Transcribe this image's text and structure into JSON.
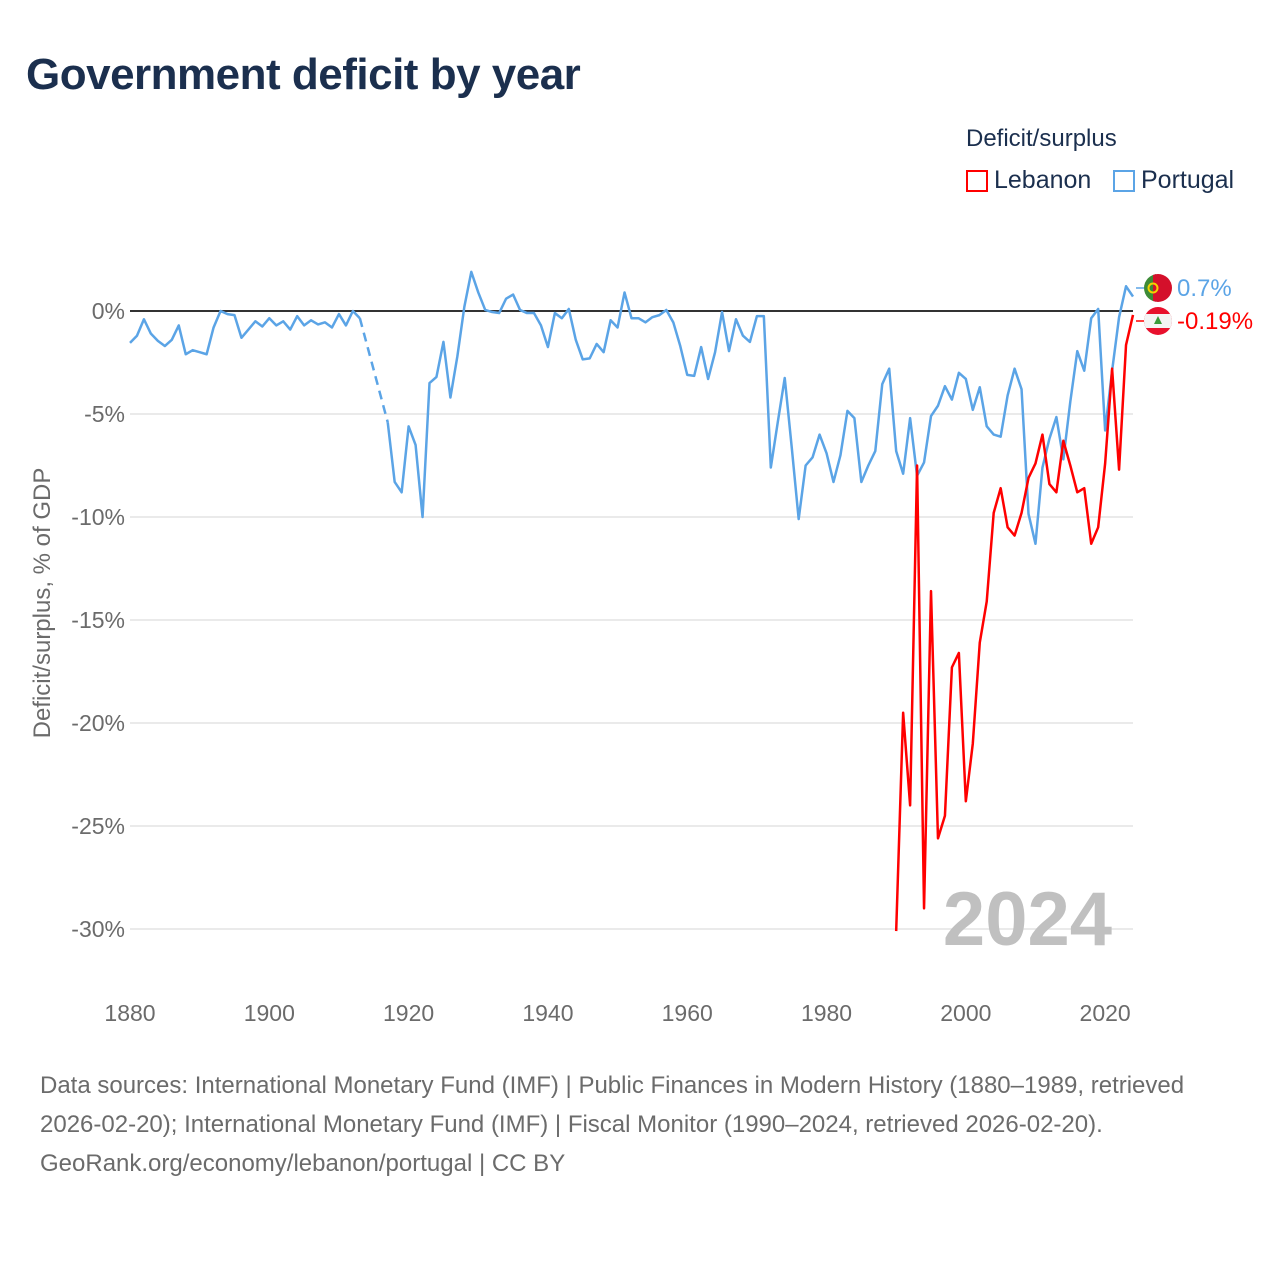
{
  "title": "Government deficit by year",
  "legend": {
    "title": "Deficit/surplus",
    "items": [
      {
        "label": "Lebanon",
        "color": "#ff0000"
      },
      {
        "label": "Portugal",
        "color": "#5ba4e6"
      }
    ]
  },
  "chart_data": {
    "type": "line",
    "title": "Government deficit by year",
    "xlabel": "",
    "ylabel": "Deficit/surplus, % of GDP",
    "xlim": [
      1880,
      2024
    ],
    "ylim": [
      -30,
      2
    ],
    "x_ticks": [
      1880,
      1900,
      1920,
      1940,
      1960,
      1980,
      2000,
      2020
    ],
    "x_tick_labels": [
      "1880",
      "1900",
      "1920",
      "1940",
      "1960",
      "1980",
      "2000",
      "2020"
    ],
    "y_ticks": [
      0,
      -5,
      -10,
      -15,
      -20,
      -25,
      -30
    ],
    "y_tick_labels": [
      "0%",
      "-5%",
      "-10%",
      "-15%",
      "-20%",
      "-25%",
      "-30%"
    ],
    "grid": true,
    "legend_position": "top-right",
    "current_year": "2024",
    "series": [
      {
        "name": "Portugal",
        "color": "#5ba4e6",
        "start_year": 1880,
        "end_label": "0.7%",
        "flag": "portugal-flag",
        "values": [
          -1.55,
          -1.2,
          -0.4,
          -1.1,
          -1.45,
          -1.7,
          -1.4,
          -0.7,
          -2.1,
          -1.9,
          -2.0,
          -2.1,
          -0.8,
          0,
          -0.15,
          -0.2,
          -1.3,
          -0.9,
          -0.5,
          -0.75,
          -0.35,
          -0.7,
          -0.5,
          -0.9,
          -0.25,
          -0.7,
          -0.45,
          -0.65,
          -0.55,
          -0.8,
          -0.15,
          -0.7,
          0,
          -0.35,
          null,
          null,
          null,
          -5.4,
          -8.3,
          -8.8,
          -5.6,
          -6.5,
          -10.0,
          -3.5,
          -3.2,
          -1.5,
          -4.2,
          -2.2,
          0.2,
          1.9,
          0.9,
          0.05,
          -0.05,
          -0.1,
          0.6,
          0.8,
          0.05,
          -0.1,
          -0.1,
          -0.7,
          -1.75,
          -0.1,
          -0.35,
          0.1,
          -1.4,
          -2.35,
          -2.3,
          -1.6,
          -2.0,
          -0.45,
          -0.8,
          0.9,
          -0.35,
          -0.35,
          -0.55,
          -0.3,
          -0.2,
          0.05,
          -0.55,
          -1.7,
          -3.1,
          -3.15,
          -1.75,
          -3.3,
          -2.0,
          -0.05,
          -1.95,
          -0.4,
          -1.2,
          -1.5,
          -0.25,
          -0.25,
          -7.6,
          -5.4,
          -3.25,
          -6.6,
          -10.1,
          -7.5,
          -7.1,
          -6.0,
          -6.9,
          -8.3,
          -7.0,
          -4.85,
          -5.2,
          -8.3,
          -7.5,
          -6.8,
          -3.55,
          -2.8,
          -6.8,
          -7.9,
          -5.2,
          -8.0,
          -7.35,
          -5.1,
          -4.6,
          -3.65,
          -4.3,
          -3.0,
          -3.3,
          -4.8,
          -3.7,
          -5.6,
          -6.0,
          -6.1,
          -4.1,
          -2.8,
          -3.8,
          -9.85,
          -11.3,
          -7.6,
          -6.2,
          -5.15,
          -7.2,
          -4.4,
          -1.95,
          -2.9,
          -0.35,
          0.1,
          -5.8,
          -2.9,
          -0.3,
          1.2,
          0.7
        ]
      },
      {
        "name": "Lebanon",
        "color": "#ff0000",
        "start_year": 1990,
        "end_label": "-0.19%",
        "flag": "lebanon-flag",
        "values": [
          -30.1,
          -19.5,
          -24.0,
          -7.5,
          -29.0,
          -13.6,
          -25.6,
          -24.5,
          -17.3,
          -16.6,
          -23.8,
          -21.0,
          -16.1,
          -14.1,
          -9.8,
          -8.6,
          -10.5,
          -10.9,
          -9.8,
          -8.1,
          -7.4,
          -6.0,
          -8.4,
          -8.8,
          -6.3,
          -7.5,
          -8.8,
          -8.6,
          -11.3,
          -10.5,
          -7.4,
          -2.8,
          -7.7,
          -1.65,
          -0.19
        ]
      }
    ]
  },
  "footer": {
    "sources": "Data sources: International Monetary Fund (IMF) | Public Finances in Modern History (1880–1989, retrieved 2026-02-20); International Monetary Fund (IMF) | Fiscal Monitor (1990–2024, retrieved 2026-02-20).",
    "credit": "GeoRank.org/economy/lebanon/portugal | CC BY"
  }
}
